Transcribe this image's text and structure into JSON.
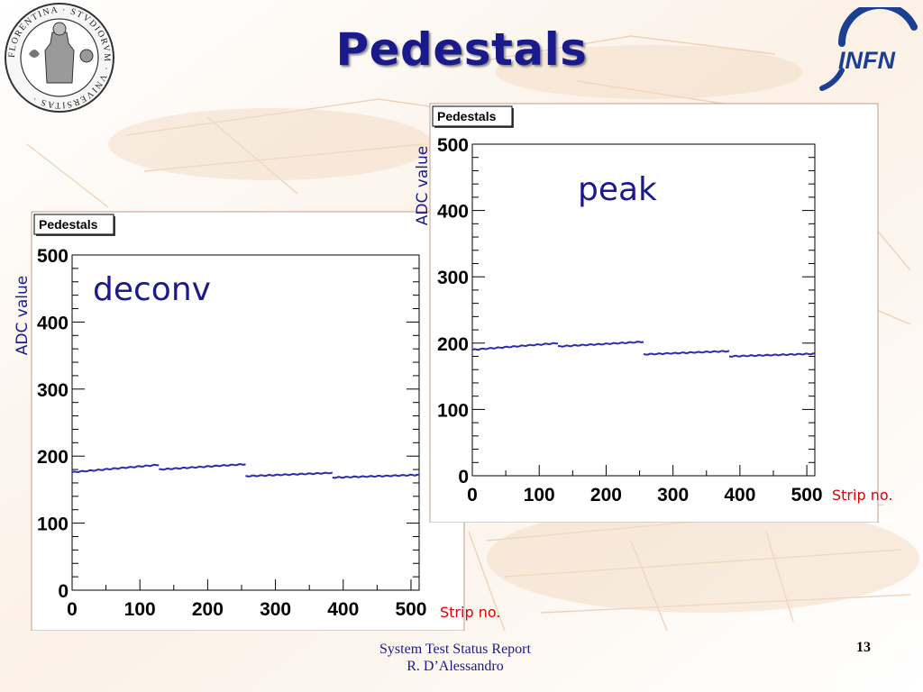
{
  "slide": {
    "title": "Pedestals",
    "footer_line1": "System Test  Status Report",
    "footer_line2": "R. D’Alessandro",
    "page_number": "13",
    "logo_infn": "INFN",
    "seal_text": "FLORENTINA · STVDIORVM · VNIVERSITAS"
  },
  "colors": {
    "title": "#1a1a8c",
    "series": "#2b2bb0",
    "annotation": "#1a1a8c",
    "strip_label": "#e00000",
    "frame": "#c89a8a"
  },
  "chart_data": [
    {
      "type": "line",
      "title": "Pedestals",
      "annotation": "deconv",
      "xlabel": "Strip no.",
      "ylabel": "ADC value",
      "xlim": [
        0,
        512
      ],
      "ylim": [
        0,
        500
      ],
      "x_ticks": [
        "0",
        "100",
        "200",
        "300",
        "400",
        "500"
      ],
      "y_ticks": [
        "0",
        "100",
        "200",
        "300",
        "400",
        "500"
      ],
      "series": [
        {
          "segments": [
            {
              "x": [
                0,
                128
              ],
              "y": [
                176,
                187
              ]
            },
            {
              "x": [
                128,
                256
              ],
              "y": [
                180,
                188
              ]
            },
            {
              "x": [
                256,
                384
              ],
              "y": [
                170,
                175
              ]
            },
            {
              "x": [
                384,
                512
              ],
              "y": [
                168,
                172
              ]
            }
          ]
        }
      ]
    },
    {
      "type": "line",
      "title": "Pedestals",
      "annotation": "peak",
      "xlabel": "Strip no.",
      "ylabel": "ADC value",
      "xlim": [
        0,
        512
      ],
      "ylim": [
        0,
        500
      ],
      "x_ticks": [
        "0",
        "100",
        "200",
        "300",
        "400",
        "500"
      ],
      "y_ticks": [
        "0",
        "100",
        "200",
        "300",
        "400",
        "500"
      ],
      "series": [
        {
          "segments": [
            {
              "x": [
                0,
                128
              ],
              "y": [
                190,
                200
              ]
            },
            {
              "x": [
                128,
                256
              ],
              "y": [
                195,
                202
              ]
            },
            {
              "x": [
                256,
                384
              ],
              "y": [
                183,
                188
              ]
            },
            {
              "x": [
                384,
                512
              ],
              "y": [
                180,
                184
              ]
            }
          ]
        }
      ]
    }
  ]
}
